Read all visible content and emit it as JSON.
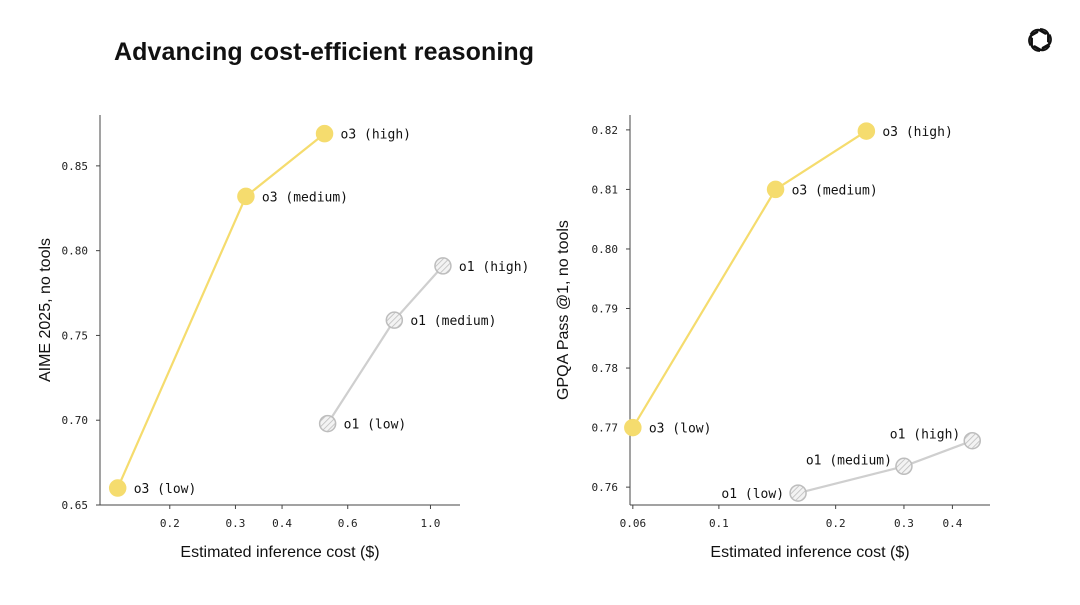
{
  "title": "Advancing cost-efficient reasoning",
  "logo_icon": "openai-logo-icon",
  "colors": {
    "o3": "#F5DC6E",
    "o1": "#CFCFCF",
    "o1_fill": "#F2F2F2",
    "axis": "#444444"
  },
  "chart_data": [
    {
      "type": "line",
      "xlabel": "Estimated inference cost ($)",
      "ylabel": "AIME 2025, no tools",
      "xscale": "log",
      "xlim": [
        0.13,
        1.2
      ],
      "ylim": [
        0.65,
        0.88
      ],
      "xticks": [
        0.2,
        0.3,
        0.4,
        0.6,
        1.0
      ],
      "xtick_labels": [
        "0.2",
        "0.3",
        "0.4",
        "0.6",
        "1.0"
      ],
      "yticks": [
        0.65,
        0.7,
        0.75,
        0.8,
        0.85
      ],
      "ytick_labels": [
        "0.65",
        "0.70",
        "0.75",
        "0.80",
        "0.85"
      ],
      "series": [
        {
          "name": "o3",
          "color_key": "o3",
          "style": "solid",
          "points": [
            {
              "label": "o3 (low)",
              "x": 0.145,
              "y": 0.66,
              "label_pos": "right"
            },
            {
              "label": "o3 (medium)",
              "x": 0.32,
              "y": 0.832,
              "label_pos": "right"
            },
            {
              "label": "o3 (high)",
              "x": 0.52,
              "y": 0.869,
              "label_pos": "right"
            }
          ]
        },
        {
          "name": "o1",
          "color_key": "o1",
          "style": "hatched",
          "points": [
            {
              "label": "o1 (low)",
              "x": 0.53,
              "y": 0.698,
              "label_pos": "right"
            },
            {
              "label": "o1 (medium)",
              "x": 0.8,
              "y": 0.759,
              "label_pos": "right"
            },
            {
              "label": "o1 (high)",
              "x": 1.08,
              "y": 0.791,
              "label_pos": "right"
            }
          ]
        }
      ]
    },
    {
      "type": "line",
      "xlabel": "Estimated inference cost ($)",
      "ylabel": "GPQA Pass @1, no tools",
      "xscale": "log",
      "xlim": [
        0.059,
        0.5
      ],
      "ylim": [
        0.757,
        0.8225
      ],
      "xticks": [
        0.06,
        0.1,
        0.2,
        0.3,
        0.4
      ],
      "xtick_labels": [
        "0.06",
        "0.1",
        "0.2",
        "0.3",
        "0.4"
      ],
      "yticks": [
        0.76,
        0.77,
        0.78,
        0.79,
        0.8,
        0.81,
        0.82
      ],
      "ytick_labels": [
        "0.76",
        "0.77",
        "0.78",
        "0.79",
        "0.80",
        "0.81",
        "0.82"
      ],
      "series": [
        {
          "name": "o3",
          "color_key": "o3",
          "style": "solid",
          "points": [
            {
              "label": "o3 (low)",
              "x": 0.06,
              "y": 0.77,
              "label_pos": "right"
            },
            {
              "label": "o3 (medium)",
              "x": 0.14,
              "y": 0.81,
              "label_pos": "right"
            },
            {
              "label": "o3 (high)",
              "x": 0.24,
              "y": 0.8198,
              "label_pos": "right"
            }
          ]
        },
        {
          "name": "o1",
          "color_key": "o1",
          "style": "hatched",
          "points": [
            {
              "label": "o1 (low)",
              "x": 0.16,
              "y": 0.759,
              "label_pos": "left"
            },
            {
              "label": "o1 (medium)",
              "x": 0.3,
              "y": 0.7635,
              "label_pos": "left-up"
            },
            {
              "label": "o1 (high)",
              "x": 0.45,
              "y": 0.7678,
              "label_pos": "left-up"
            }
          ]
        }
      ]
    }
  ]
}
